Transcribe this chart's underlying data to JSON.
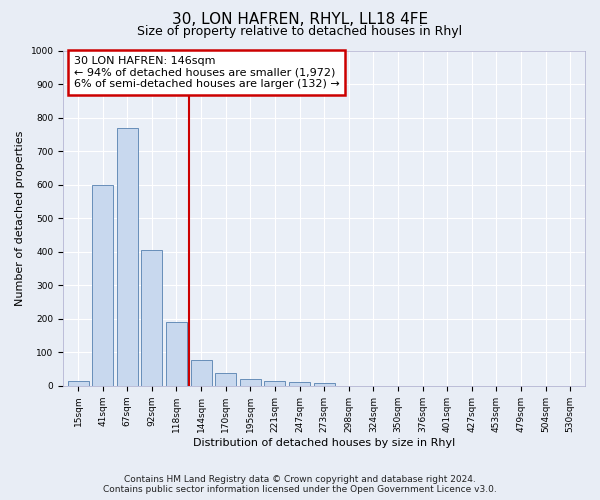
{
  "title": "30, LON HAFREN, RHYL, LL18 4FE",
  "subtitle": "Size of property relative to detached houses in Rhyl",
  "xlabel": "Distribution of detached houses by size in Rhyl",
  "ylabel": "Number of detached properties",
  "categories": [
    "15sqm",
    "41sqm",
    "67sqm",
    "92sqm",
    "118sqm",
    "144sqm",
    "170sqm",
    "195sqm",
    "221sqm",
    "247sqm",
    "273sqm",
    "298sqm",
    "324sqm",
    "350sqm",
    "376sqm",
    "401sqm",
    "427sqm",
    "453sqm",
    "479sqm",
    "504sqm",
    "530sqm"
  ],
  "values": [
    15,
    600,
    770,
    405,
    190,
    78,
    37,
    20,
    15,
    12,
    8,
    0,
    0,
    0,
    0,
    0,
    0,
    0,
    0,
    0,
    0
  ],
  "bar_color": "#c8d8ee",
  "bar_edge_color": "#5580b0",
  "vline_x": 4.5,
  "vline_color": "#cc0000",
  "annotation_line1": "30 LON HAFREN: 146sqm",
  "annotation_line2": "← 94% of detached houses are smaller (1,972)",
  "annotation_line3": "6% of semi-detached houses are larger (132) →",
  "annotation_box_color": "#cc0000",
  "ylim": [
    0,
    1000
  ],
  "yticks": [
    0,
    100,
    200,
    300,
    400,
    500,
    600,
    700,
    800,
    900,
    1000
  ],
  "footnote1": "Contains HM Land Registry data © Crown copyright and database right 2024.",
  "footnote2": "Contains public sector information licensed under the Open Government Licence v3.0.",
  "bg_color": "#e8edf5",
  "plot_bg_color": "#eaeff7",
  "grid_color": "#ffffff",
  "title_fontsize": 11,
  "subtitle_fontsize": 9,
  "axis_label_fontsize": 8,
  "tick_fontsize": 6.5,
  "annotation_fontsize": 8,
  "footnote_fontsize": 6.5
}
